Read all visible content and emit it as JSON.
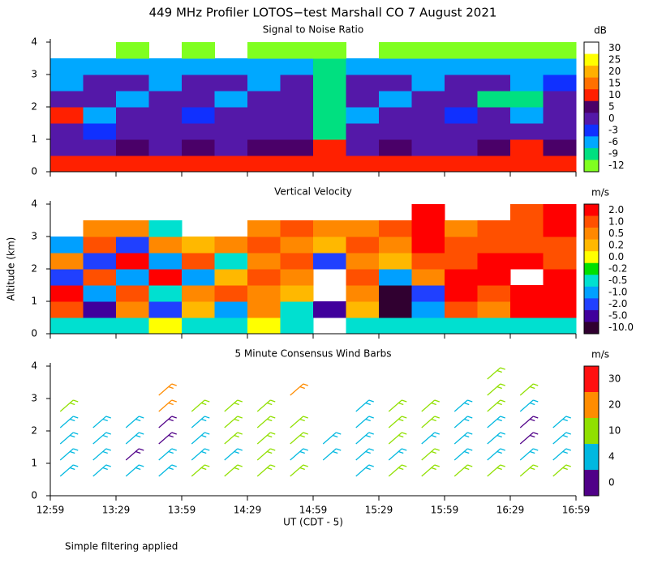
{
  "title": "449 MHz Profiler LOTOS−test Marshall CO  7 August 2021",
  "footnote": "Simple filtering applied",
  "chart_data": [
    {
      "type": "heatmap",
      "title": "Signal to Noise Ratio",
      "x": [
        13.1083,
        13.3583,
        13.6083,
        13.8583,
        14.1083,
        14.3583,
        14.6083,
        14.8583,
        15.1083,
        15.3583,
        15.6083,
        15.8583,
        16.1083,
        16.3583,
        16.6083,
        16.8583
      ],
      "y": [
        0.25,
        0.75,
        1.25,
        1.75,
        2.25,
        2.75,
        3.25,
        3.75
      ],
      "values": [
        [
          12,
          11,
          10,
          12,
          10,
          12,
          11,
          10,
          14,
          12,
          11,
          12,
          10,
          11,
          12,
          10
        ],
        [
          3,
          4,
          5,
          3,
          6,
          4,
          8,
          5,
          10,
          4,
          5,
          3,
          4,
          5,
          12,
          5
        ],
        [
          2,
          -2,
          1,
          3,
          0,
          2,
          1,
          4,
          -8,
          1,
          0,
          2,
          3,
          1,
          0,
          2
        ],
        [
          11,
          -5,
          2,
          0,
          -3,
          1,
          2,
          0,
          -9,
          -4,
          2,
          0,
          -3,
          1,
          -5,
          2
        ],
        [
          1,
          2,
          -4,
          1,
          3,
          -5,
          0,
          2,
          -9,
          1,
          -4,
          2,
          1,
          -7,
          -8,
          1
        ],
        [
          -4,
          1,
          2,
          -5,
          1,
          2,
          -4,
          1,
          -9,
          2,
          1,
          -5,
          0,
          2,
          -4,
          -3
        ],
        [
          -6,
          -4,
          -5,
          -4,
          -5,
          -6,
          -4,
          -5,
          -9,
          -5,
          -4,
          -6,
          -5,
          -5,
          -4,
          -6
        ],
        [
          null,
          null,
          -10,
          null,
          -10,
          null,
          -11,
          -10,
          -10,
          null,
          -10,
          -11,
          -10,
          -10,
          -10,
          -11
        ]
      ],
      "xlim": [
        12.9833,
        16.9833
      ],
      "ylim": [
        0,
        4
      ],
      "yticks": [
        0,
        1,
        2,
        3,
        4
      ],
      "colorbar": {
        "label": "dB",
        "levels": [
          30,
          25,
          20,
          15,
          10,
          5,
          0,
          -3,
          -6,
          -9,
          -12
        ],
        "colors": [
          "#ffffff",
          "#ffff00",
          "#ffb000",
          "#ff7000",
          "#ff2000",
          "#4a0068",
          "#5418a8",
          "#1030ff",
          "#00a8ff",
          "#00e080",
          "#80ff20"
        ]
      }
    },
    {
      "type": "heatmap",
      "title": "Vertical Velocity",
      "y_label": "Altitude (km)",
      "x": [
        13.1083,
        13.3583,
        13.6083,
        13.8583,
        14.1083,
        14.3583,
        14.6083,
        14.8583,
        15.1083,
        15.3583,
        15.6083,
        15.8583,
        16.1083,
        16.3583,
        16.6083,
        16.8583
      ],
      "y": [
        0.25,
        0.75,
        1.25,
        1.75,
        2.25,
        2.75,
        3.25,
        3.75
      ],
      "values": [
        [
          -0.3,
          -0.3,
          -0.3,
          0.1,
          -0.3,
          -0.3,
          0.1,
          -0.3,
          null,
          -0.3,
          -0.3,
          -0.3,
          -0.3,
          -0.3,
          -0.3,
          -0.3
        ],
        [
          1.5,
          -3,
          0.6,
          -1.5,
          0.3,
          -0.6,
          0.7,
          -0.3,
          -3,
          0.4,
          -6,
          -0.8,
          1.2,
          0.8,
          2.5,
          2.5
        ],
        [
          2.5,
          -0.8,
          1.5,
          -0.3,
          0.8,
          1.2,
          0.6,
          0.3,
          null,
          0.9,
          -6,
          -1.5,
          2.5,
          1.5,
          2.5,
          2.5
        ],
        [
          -1.5,
          1.5,
          -0.6,
          2.5,
          -0.8,
          0.4,
          1.2,
          0.6,
          null,
          1.2,
          -0.7,
          0.8,
          2.5,
          2.5,
          null,
          2.5
        ],
        [
          0.8,
          -2,
          2.5,
          -0.7,
          1.5,
          -0.3,
          0.6,
          1.2,
          -1.2,
          0.6,
          0.3,
          1.5,
          1.5,
          2.5,
          2.5,
          1.5
        ],
        [
          -0.6,
          1.2,
          -1.5,
          0.8,
          0.3,
          0.6,
          1.2,
          0.8,
          0.4,
          1.2,
          0.7,
          2.5,
          1.2,
          1.5,
          1.2,
          1.5
        ],
        [
          null,
          0.6,
          0.8,
          -0.4,
          null,
          null,
          0.7,
          1.2,
          0.6,
          0.8,
          1.5,
          2.5,
          0.8,
          1.2,
          1.5,
          2.5
        ],
        [
          null,
          null,
          null,
          null,
          null,
          null,
          null,
          null,
          null,
          null,
          null,
          2.5,
          null,
          null,
          1.5,
          2.5
        ]
      ],
      "xlim": [
        12.9833,
        16.9833
      ],
      "ylim": [
        0,
        4
      ],
      "yticks": [
        0,
        1,
        2,
        3,
        4
      ],
      "colorbar": {
        "label": "m/s",
        "levels": [
          {
            "value": 2,
            "label": "2.0"
          },
          {
            "value": 1,
            "label": "1.0"
          },
          0.5,
          0.2,
          {
            "value": 0,
            "label": "0.0"
          },
          -0.2,
          -0.5,
          {
            "value": -1,
            "label": "-1.0"
          },
          {
            "value": -2,
            "label": "-2.0"
          },
          {
            "value": -5,
            "label": "-5.0"
          },
          {
            "value": -10,
            "label": "-10.0"
          }
        ],
        "colors": [
          "#ff0000",
          "#ff5000",
          "#ff8800",
          "#ffb800",
          "#ffff00",
          "#00e000",
          "#00e0d0",
          "#00a0ff",
          "#2040ff",
          "#40009c",
          "#300030"
        ]
      }
    },
    {
      "type": "barbs",
      "title": "5 Minute Consensus Wind Barbs",
      "x_label": "UT  (CDT - 5)",
      "x": [
        13.1083,
        13.3583,
        13.6083,
        13.8583,
        14.1083,
        14.3583,
        14.6083,
        14.8583,
        15.1083,
        15.3583,
        15.6083,
        15.8583,
        16.1083,
        16.3583,
        16.6083,
        16.8583
      ],
      "y": [
        0.25,
        0.75,
        1.25,
        1.75,
        2.25,
        2.75,
        3.25,
        3.75
      ],
      "values": [
        [
          null,
          null,
          null,
          null,
          null,
          null,
          null,
          null,
          null,
          null,
          null,
          null,
          null,
          null,
          null,
          null
        ],
        [
          6,
          8,
          5,
          7,
          10,
          12,
          11,
          12,
          null,
          9,
          10,
          12,
          13,
          10,
          12,
          11
        ],
        [
          7,
          5,
          3,
          6,
          8,
          9,
          10,
          8,
          6,
          7,
          5,
          10,
          8,
          5,
          9,
          6
        ],
        [
          8,
          6,
          4,
          3,
          8,
          10,
          11,
          12,
          8,
          5,
          12,
          9,
          4,
          8,
          3,
          7
        ],
        [
          8,
          7,
          5,
          3,
          9,
          11,
          12,
          13,
          null,
          6,
          10,
          11,
          8,
          6,
          3,
          8
        ],
        [
          18,
          null,
          null,
          20,
          18,
          15,
          12,
          null,
          null,
          6,
          10,
          12,
          9,
          10,
          8,
          null
        ],
        [
          null,
          null,
          null,
          22,
          null,
          null,
          null,
          20,
          null,
          null,
          null,
          null,
          null,
          12,
          10,
          null
        ],
        [
          null,
          null,
          null,
          null,
          null,
          null,
          null,
          null,
          null,
          null,
          null,
          null,
          null,
          12,
          null,
          null
        ]
      ],
      "xlim": [
        12.9833,
        16.9833
      ],
      "ylim": [
        0,
        4
      ],
      "yticks": [
        0,
        1,
        2,
        3,
        4
      ],
      "xticks": [
        {
          "value": 12.9833,
          "label": "12:59"
        },
        {
          "value": 13.4833,
          "label": "13:29"
        },
        {
          "value": 13.9833,
          "label": "13:59"
        },
        {
          "value": 14.4833,
          "label": "14:29"
        },
        {
          "value": 14.9833,
          "label": "14:59"
        },
        {
          "value": 15.4833,
          "label": "15:29"
        },
        {
          "value": 15.9833,
          "label": "15:59"
        },
        {
          "value": 16.4833,
          "label": "16:29"
        },
        {
          "value": 16.9833,
          "label": "16:59"
        }
      ],
      "colorbar": {
        "label": "m/s",
        "levels": [
          30,
          20,
          10,
          4,
          0
        ],
        "colors": [
          "#ff1010",
          "#ff8c00",
          "#90e000",
          "#00b8e0",
          "#500088"
        ]
      }
    }
  ]
}
